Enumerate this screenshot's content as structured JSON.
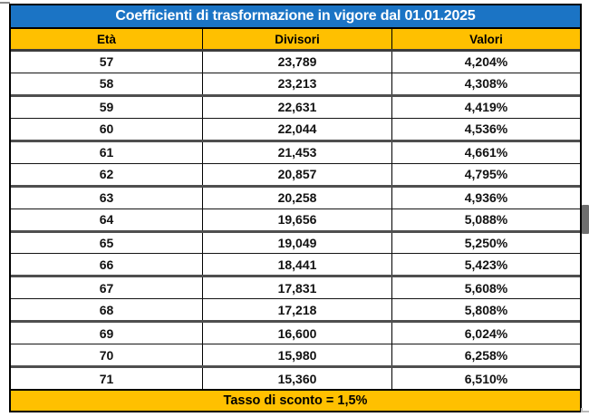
{
  "table": {
    "title": "Coefficienti di trasformazione in vigore dal 01.01.2025",
    "columns": [
      "Età",
      "Divisori",
      "Valori"
    ],
    "rows": [
      [
        "57",
        "23,789",
        "4,204%"
      ],
      [
        "58",
        "23,213",
        "4,308%"
      ],
      [
        "59",
        "22,631",
        "4,419%"
      ],
      [
        "60",
        "22,044",
        "4,536%"
      ],
      [
        "61",
        "21,453",
        "4,661%"
      ],
      [
        "62",
        "20,857",
        "4,795%"
      ],
      [
        "63",
        "20,258",
        "4,936%"
      ],
      [
        "64",
        "19,656",
        "5,088%"
      ],
      [
        "65",
        "19,049",
        "5,250%"
      ],
      [
        "66",
        "18,441",
        "5,423%"
      ],
      [
        "67",
        "17,831",
        "5,608%"
      ],
      [
        "68",
        "17,218",
        "5,808%"
      ],
      [
        "69",
        "16,600",
        "6,024%"
      ],
      [
        "70",
        "15,980",
        "6,258%"
      ],
      [
        "71",
        "15,360",
        "6,510%"
      ]
    ],
    "footer": "Tasso di sconto = 1,5%"
  },
  "colors": {
    "title_background": "#1b74c5",
    "title_text": "#ffffff",
    "gold_background": "#ffc000",
    "border": "#000000",
    "scrollbar_thumb": "#6e6e6e"
  }
}
